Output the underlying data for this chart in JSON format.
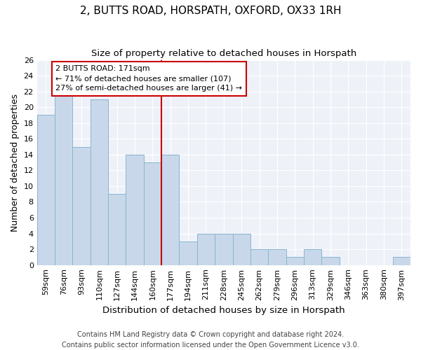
{
  "title": "2, BUTTS ROAD, HORSPATH, OXFORD, OX33 1RH",
  "subtitle": "Size of property relative to detached houses in Horspath",
  "xlabel": "Distribution of detached houses by size in Horspath",
  "ylabel": "Number of detached properties",
  "bar_labels": [
    "59sqm",
    "76sqm",
    "93sqm",
    "110sqm",
    "127sqm",
    "144sqm",
    "160sqm",
    "177sqm",
    "194sqm",
    "211sqm",
    "228sqm",
    "245sqm",
    "262sqm",
    "279sqm",
    "296sqm",
    "313sqm",
    "329sqm",
    "346sqm",
    "363sqm",
    "380sqm",
    "397sqm"
  ],
  "bar_values": [
    19,
    22,
    15,
    21,
    9,
    14,
    13,
    14,
    3,
    4,
    4,
    4,
    2,
    2,
    1,
    2,
    1,
    0,
    0,
    0,
    1
  ],
  "bar_color": "#c8d8ea",
  "bar_edge_color": "#8ab4d0",
  "highlight_label": "2 BUTTS ROAD: 171sqm",
  "annotation_line1": "← 71% of detached houses are smaller (107)",
  "annotation_line2": "27% of semi-detached houses are larger (41) →",
  "vline_color": "#cc0000",
  "annotation_box_edge": "#cc0000",
  "vline_index": 7,
  "ylim": [
    0,
    26
  ],
  "yticks": [
    0,
    2,
    4,
    6,
    8,
    10,
    12,
    14,
    16,
    18,
    20,
    22,
    24,
    26
  ],
  "footer_line1": "Contains HM Land Registry data © Crown copyright and database right 2024.",
  "footer_line2": "Contains public sector information licensed under the Open Government Licence v3.0.",
  "background_color": "#ffffff",
  "plot_bg_color": "#eef2f8",
  "grid_color": "#ffffff",
  "title_fontsize": 11,
  "subtitle_fontsize": 9.5,
  "axis_label_fontsize": 9,
  "tick_fontsize": 8,
  "footer_fontsize": 7
}
